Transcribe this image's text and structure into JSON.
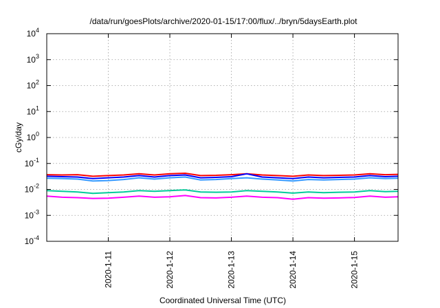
{
  "chart_data": {
    "type": "line",
    "title": "/data/run/goesPlots/archive/2020-01-15/17:00/flux/../bryn/5daysEarth.plot",
    "xlabel": "Coordinated Universal Time (UTC)",
    "ylabel": "cGy/day",
    "y_scale": "log",
    "ylim": [
      0.0001,
      10000
    ],
    "y_ticks": [
      {
        "base": "10",
        "exp": "-4",
        "value": 0.0001
      },
      {
        "base": "10",
        "exp": "-3",
        "value": 0.001
      },
      {
        "base": "10",
        "exp": "-2",
        "value": 0.01
      },
      {
        "base": "10",
        "exp": "-1",
        "value": 0.1
      },
      {
        "base": "10",
        "exp": "0",
        "value": 1
      },
      {
        "base": "10",
        "exp": "1",
        "value": 10
      },
      {
        "base": "10",
        "exp": "2",
        "value": 100
      },
      {
        "base": "10",
        "exp": "3",
        "value": 1000
      },
      {
        "base": "10",
        "exp": "4",
        "value": 10000
      }
    ],
    "xlim": [
      "2020-01-10T00:00",
      "2020-01-15T17:00"
    ],
    "x_ticks": [
      {
        "label": "2020-1-11",
        "value": "2020-01-11T00:00"
      },
      {
        "label": "2020-1-12",
        "value": "2020-01-12T00:00"
      },
      {
        "label": "2020-1-13",
        "value": "2020-01-13T00:00"
      },
      {
        "label": "2020-1-14",
        "value": "2020-01-14T00:00"
      },
      {
        "label": "2020-1-15",
        "value": "2020-01-15T00:00"
      }
    ],
    "grid": true,
    "legend": "none",
    "x": [
      "2020-01-10T00:00",
      "2020-01-10T06:00",
      "2020-01-10T12:00",
      "2020-01-10T18:00",
      "2020-01-11T00:00",
      "2020-01-11T06:00",
      "2020-01-11T12:00",
      "2020-01-11T18:00",
      "2020-01-12T00:00",
      "2020-01-12T06:00",
      "2020-01-12T12:00",
      "2020-01-12T18:00",
      "2020-01-13T00:00",
      "2020-01-13T06:00",
      "2020-01-13T12:00",
      "2020-01-13T18:00",
      "2020-01-14T00:00",
      "2020-01-14T06:00",
      "2020-01-14T12:00",
      "2020-01-14T18:00",
      "2020-01-15T00:00",
      "2020-01-15T06:00",
      "2020-01-15T12:00",
      "2020-01-15T17:00"
    ],
    "series": [
      {
        "color": "#ff0000",
        "values": [
          0.037,
          0.036,
          0.037,
          0.032,
          0.034,
          0.036,
          0.04,
          0.036,
          0.04,
          0.042,
          0.034,
          0.035,
          0.037,
          0.04,
          0.036,
          0.034,
          0.032,
          0.036,
          0.034,
          0.035,
          0.036,
          0.04,
          0.037,
          0.038
        ]
      },
      {
        "color": "#0000ff",
        "values": [
          0.032,
          0.031,
          0.03,
          0.026,
          0.028,
          0.03,
          0.034,
          0.03,
          0.034,
          0.036,
          0.028,
          0.029,
          0.031,
          0.04,
          0.03,
          0.028,
          0.026,
          0.03,
          0.028,
          0.029,
          0.03,
          0.034,
          0.031,
          0.032
        ]
      },
      {
        "color": "#3399ff",
        "values": [
          0.027,
          0.026,
          0.025,
          0.021,
          0.022,
          0.024,
          0.028,
          0.025,
          0.028,
          0.03,
          0.023,
          0.024,
          0.026,
          0.028,
          0.025,
          0.023,
          0.021,
          0.024,
          0.023,
          0.024,
          0.025,
          0.028,
          0.026,
          0.027
        ]
      },
      {
        "color": "#00cc99",
        "values": [
          0.009,
          0.0085,
          0.008,
          0.007,
          0.0075,
          0.008,
          0.009,
          0.0085,
          0.009,
          0.0095,
          0.008,
          0.0078,
          0.008,
          0.009,
          0.0085,
          0.008,
          0.0072,
          0.008,
          0.0075,
          0.0078,
          0.008,
          0.009,
          0.0082,
          0.0085
        ]
      },
      {
        "color": "#ff00ff",
        "values": [
          0.0055,
          0.005,
          0.0048,
          0.0045,
          0.0046,
          0.005,
          0.0055,
          0.005,
          0.0052,
          0.0058,
          0.0048,
          0.0047,
          0.005,
          0.0055,
          0.005,
          0.0048,
          0.0042,
          0.0048,
          0.0046,
          0.0047,
          0.0049,
          0.0055,
          0.005,
          0.0052
        ]
      }
    ]
  }
}
